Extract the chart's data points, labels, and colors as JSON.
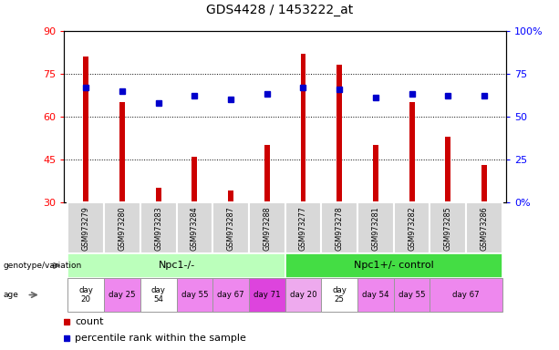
{
  "title": "GDS4428 / 1453222_at",
  "samples": [
    "GSM973279",
    "GSM973280",
    "GSM973283",
    "GSM973284",
    "GSM973287",
    "GSM973288",
    "GSM973277",
    "GSM973278",
    "GSM973281",
    "GSM973282",
    "GSM973285",
    "GSM973286"
  ],
  "counts": [
    81,
    65,
    35,
    46,
    34,
    50,
    82,
    78,
    50,
    65,
    53,
    43
  ],
  "percentile_ranks": [
    67,
    65,
    58,
    62,
    60,
    63,
    67,
    66,
    61,
    63,
    62,
    62
  ],
  "ylim_left": [
    30,
    90
  ],
  "ylim_right": [
    0,
    100
  ],
  "yticks_left": [
    30,
    45,
    60,
    75,
    90
  ],
  "yticks_right": [
    0,
    25,
    50,
    75,
    100
  ],
  "ytick_labels_right": [
    "0%",
    "25",
    "50",
    "75",
    "100%"
  ],
  "bar_color": "#cc0000",
  "dot_color": "#0000cc",
  "genotype_groups": [
    {
      "label": "Npc1-/-",
      "start": 0,
      "end": 6,
      "color": "#bbffbb"
    },
    {
      "label": "Npc1+/- control",
      "start": 6,
      "end": 12,
      "color": "#44dd44"
    }
  ],
  "age_groups": [
    {
      "label": "day\n20",
      "indices": [
        0
      ],
      "color": "white"
    },
    {
      "label": "day 25",
      "indices": [
        1
      ],
      "color": "#ee88ee"
    },
    {
      "label": "day\n54",
      "indices": [
        2
      ],
      "color": "white"
    },
    {
      "label": "day 55",
      "indices": [
        3
      ],
      "color": "#ee88ee"
    },
    {
      "label": "day 67",
      "indices": [
        4
      ],
      "color": "#ee88ee"
    },
    {
      "label": "day 71",
      "indices": [
        5
      ],
      "color": "#dd44dd"
    },
    {
      "label": "day 20",
      "indices": [
        6
      ],
      "color": "#eeaaee"
    },
    {
      "label": "day\n25",
      "indices": [
        7
      ],
      "color": "white"
    },
    {
      "label": "day 54",
      "indices": [
        8
      ],
      "color": "#ee88ee"
    },
    {
      "label": "day 55",
      "indices": [
        9
      ],
      "color": "#ee88ee"
    },
    {
      "label": "day 67",
      "indices": [
        10,
        11
      ],
      "color": "#ee88ee"
    }
  ],
  "legend_count_label": "count",
  "legend_pct_label": "percentile rank within the sample",
  "bar_width": 0.15
}
